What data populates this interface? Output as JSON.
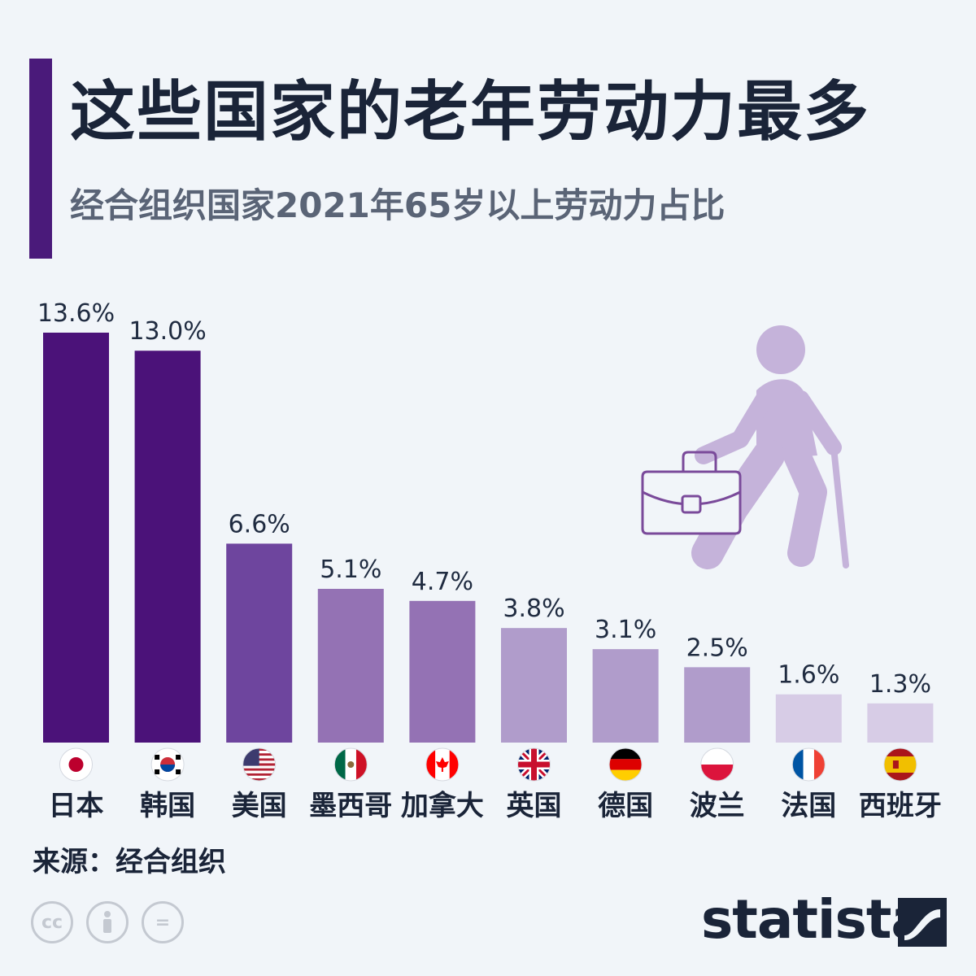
{
  "header": {
    "title": "这些国家的老年劳动力最多",
    "subtitle": "经合组织国家2021年65岁以上劳动力占比"
  },
  "footer": {
    "source": "来源：经合组织",
    "brand": "statista"
  },
  "license_icons": [
    "cc-icon",
    "attribution-icon",
    "no-derivatives-icon"
  ],
  "colors": {
    "background": "#f1f5f9",
    "accent": "#4a1a7a",
    "title": "#1a2438",
    "subtitle": "#5a6476",
    "illustration": "#c5b3da",
    "bar_shades": [
      "#4b1279",
      "#4b1279",
      "#6e459e",
      "#9472b4",
      "#9472b4",
      "#b09ccb",
      "#b09ccb",
      "#b09ccb",
      "#d7cce6",
      "#d7cce6"
    ]
  },
  "chart_data": {
    "type": "bar",
    "title": "这些国家的老年劳动力最多",
    "subtitle": "经合组织国家2021年65岁以上劳动力占比",
    "categories": [
      "日本",
      "韩国",
      "美国",
      "墨西哥",
      "加拿大",
      "英国",
      "德国",
      "波兰",
      "法国",
      "西班牙"
    ],
    "values": [
      13.6,
      13.0,
      6.6,
      5.1,
      4.7,
      3.8,
      3.1,
      2.5,
      1.6,
      1.3
    ],
    "value_labels": [
      "13.6%",
      "13.0%",
      "6.6%",
      "5.1%",
      "4.7%",
      "3.8%",
      "3.1%",
      "2.5%",
      "1.6%",
      "1.3%"
    ],
    "flags": [
      "japan-flag",
      "south-korea-flag",
      "usa-flag",
      "mexico-flag",
      "canada-flag",
      "uk-flag",
      "germany-flag",
      "poland-flag",
      "france-flag",
      "spain-flag"
    ],
    "ylim": [
      0,
      13.6
    ],
    "grid": false,
    "legend": "none"
  }
}
